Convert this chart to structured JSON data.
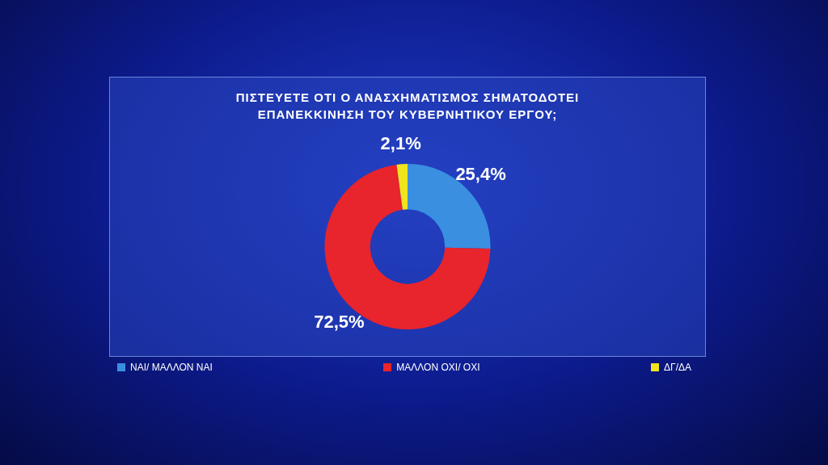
{
  "chart_data": {
    "type": "donut",
    "title": "ΠΙΣΤΕΥΕΤΕ ΟΤΙ Ο ΑΝΑΣΧΗΜΑΤΙΣΜΟΣ ΣΗΜΑΤΟΔΟΤΕΙ ΕΠΑΝΕΚΚΙΝΗΣΗ ΤΟΥ ΚΥΒΕΡΝΗΤΙΚΟΥ ΕΡΓΟΥ;",
    "categories": [
      "ΝΑΙ/ ΜΑΛΛΟΝ ΝΑΙ",
      "ΜΑΛΛΟΝ ΟΧΙ/ ΟΧΙ",
      "ΔΓ/ΔΑ"
    ],
    "values": [
      25.4,
      72.5,
      2.1
    ],
    "colors": [
      "#3a8fe0",
      "#e8242c",
      "#f2e41c"
    ],
    "value_labels": [
      "25,4%",
      "72,5%",
      "2,1%"
    ],
    "legend": "bottom"
  }
}
